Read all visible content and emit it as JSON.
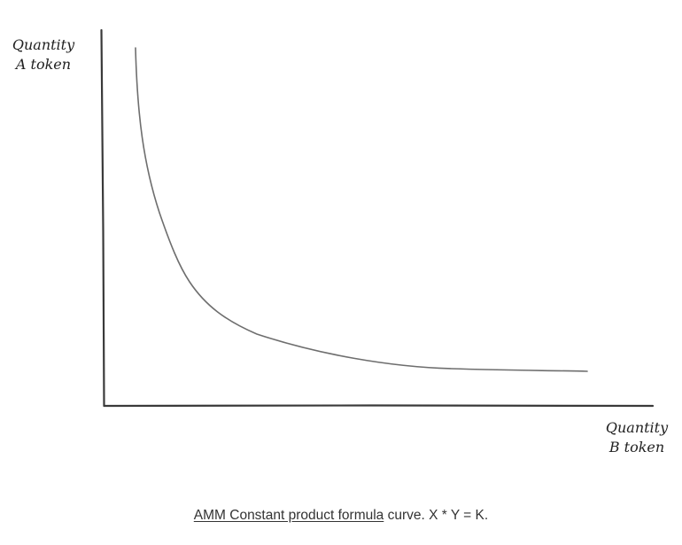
{
  "axes": {
    "y_label_line1": "Quantity",
    "y_label_line2": "A token",
    "x_label_line1": "Quantity",
    "x_label_line2": "B token"
  },
  "caption": {
    "link_text": "AMM Constant product formula",
    "rest_text": " curve. X * Y = K."
  },
  "colors": {
    "axis": "#3a3a3a",
    "curve": "#6e6e6e",
    "caption_text": "#333333"
  }
}
